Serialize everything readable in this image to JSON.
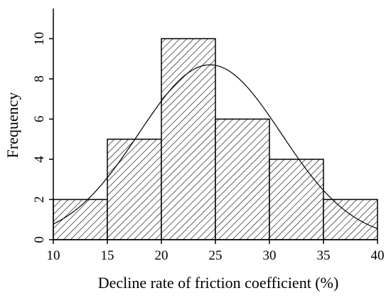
{
  "chart_data": {
    "type": "bar",
    "subtype": "histogram",
    "xlabel": "Decline rate of friction coefficient  (%)",
    "ylabel": "Frequency",
    "bins": [
      {
        "start": 10,
        "end": 15,
        "value": 2
      },
      {
        "start": 15,
        "end": 20,
        "value": 5
      },
      {
        "start": 20,
        "end": 25,
        "value": 10
      },
      {
        "start": 25,
        "end": 30,
        "value": 6
      },
      {
        "start": 30,
        "end": 35,
        "value": 4
      },
      {
        "start": 35,
        "end": 40,
        "value": 2
      }
    ],
    "xlim": [
      10,
      40
    ],
    "ylim": [
      0,
      11.5
    ],
    "xticks": [
      "10",
      "15",
      "20",
      "25",
      "30",
      "35",
      "40"
    ],
    "yticks": [
      "0",
      "2",
      "4",
      "6",
      "8",
      "10"
    ],
    "fit_curve": {
      "type": "normal",
      "mean": 24.5,
      "std": 6.6,
      "peak": 8.7
    },
    "fill_pattern": "diagonal-hatch",
    "grid": false,
    "legend": "none"
  }
}
